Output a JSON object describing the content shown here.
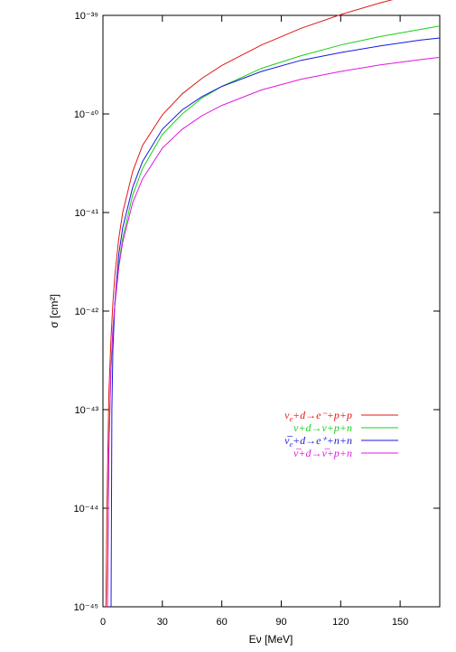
{
  "chart_data": {
    "type": "line",
    "title": "",
    "xlabel": "Eν [MeV]",
    "ylabel": "σ [cm²]",
    "xlim": [
      0,
      170
    ],
    "ylim": [
      1e-45,
      1e-39
    ],
    "yscale": "log",
    "x_ticks": [
      0,
      30,
      60,
      90,
      120,
      150
    ],
    "x_tick_labels": [
      "0",
      "30",
      "60",
      "90",
      "120",
      "150"
    ],
    "y_ticks": [
      1e-45,
      1e-44,
      1e-43,
      1e-42,
      1e-41,
      1e-40,
      1e-39
    ],
    "y_tick_labels": [
      "10⁻⁴⁵",
      "10⁻⁴⁴",
      "10⁻⁴³",
      "10⁻⁴²",
      "10⁻⁴¹",
      "10⁻⁴⁰",
      "10⁻³⁹"
    ],
    "grid": false,
    "legend_position": "center-right",
    "series": [
      {
        "name": "νe+d→e⁻+p+p",
        "color": "#e01818",
        "x": [
          1.5,
          2,
          3,
          4,
          5,
          6,
          8,
          10,
          15,
          20,
          30,
          40,
          50,
          60,
          80,
          100,
          120,
          140,
          160,
          170
        ],
        "y": [
          1e-45,
          1e-44,
          1.5e-43,
          5e-43,
          1.2e-42,
          2.3e-42,
          5.5e-42,
          1e-41,
          2.6e-41,
          4.8e-41,
          9.8e-41,
          1.6e-40,
          2.3e-40,
          3.1e-40,
          5e-40,
          7.4e-40,
          1.02e-39,
          1.34e-39,
          1.7e-39,
          1.9e-39
        ]
      },
      {
        "name": "ν+d→ν+p+n",
        "color": "#18d018",
        "x": [
          2.3,
          3,
          4,
          5,
          6,
          8,
          10,
          15,
          20,
          30,
          40,
          50,
          60,
          80,
          100,
          120,
          140,
          160,
          170
        ],
        "y": [
          1e-45,
          4e-44,
          2.5e-43,
          6.5e-43,
          1.2e-42,
          3e-42,
          5.5e-42,
          1.5e-41,
          2.8e-41,
          6.2e-41,
          1e-40,
          1.45e-40,
          1.9e-40,
          2.9e-40,
          3.9e-40,
          5e-40,
          6.1e-40,
          7.2e-40,
          7.8e-40
        ]
      },
      {
        "name": "ν̅e+d→e⁺+n+n",
        "color": "#1818e0",
        "x": [
          4.1,
          4.5,
          5,
          6,
          8,
          10,
          15,
          20,
          30,
          40,
          50,
          60,
          80,
          100,
          120,
          140,
          160,
          170
        ],
        "y": [
          1e-45,
          1e-43,
          4e-43,
          1.2e-42,
          3.8e-42,
          7e-42,
          1.8e-41,
          3.3e-41,
          7e-41,
          1.1e-40,
          1.5e-40,
          1.9e-40,
          2.7e-40,
          3.5e-40,
          4.2e-40,
          4.9e-40,
          5.6e-40,
          5.9e-40
        ]
      },
      {
        "name": "ν̅+d→ν̅+p+n",
        "color": "#e018e0",
        "x": [
          2.3,
          3,
          4,
          5,
          6,
          8,
          10,
          15,
          20,
          30,
          40,
          50,
          60,
          80,
          100,
          120,
          140,
          160,
          170
        ],
        "y": [
          1e-45,
          4e-44,
          2.5e-43,
          6.5e-43,
          1.15e-42,
          2.8e-42,
          5e-42,
          1.25e-41,
          2.2e-41,
          4.5e-41,
          7e-41,
          9.6e-41,
          1.22e-40,
          1.75e-40,
          2.25e-40,
          2.7e-40,
          3.15e-40,
          3.55e-40,
          3.75e-40
        ]
      }
    ]
  },
  "legend": {
    "entries": [
      {
        "main": "ν",
        "sub": "e",
        "rest": "+d→e⁻+p+p",
        "color": "#e01818"
      },
      {
        "main": "ν",
        "sub": "",
        "rest": "+d→ν+p+n",
        "color": "#18d018"
      },
      {
        "main": "ν̅",
        "sub": "e",
        "rest": "+d→e⁺+n+n",
        "color": "#1818e0"
      },
      {
        "main": "ν̅",
        "sub": "",
        "rest": "+d→ν̅+p+n",
        "color": "#e018e0"
      }
    ]
  }
}
